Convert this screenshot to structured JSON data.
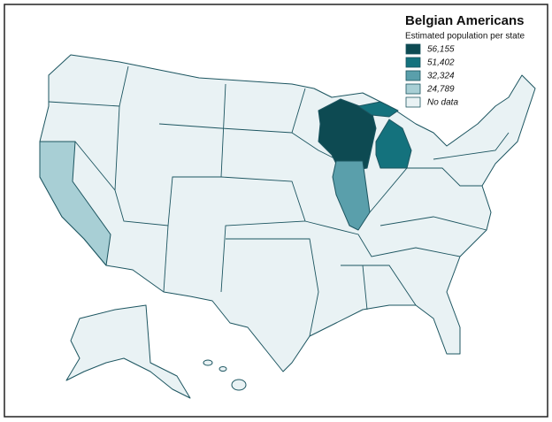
{
  "legend": {
    "title": "Belgian Americans",
    "subtitle": "Estimated population per state",
    "items": [
      {
        "label": "56,155",
        "color": "#0d4a52"
      },
      {
        "label": "51,402",
        "color": "#14727d"
      },
      {
        "label": "32,324",
        "color": "#5a9fab"
      },
      {
        "label": "24,789",
        "color": "#a8cfd5"
      },
      {
        "label": "No data",
        "color": "#e9f2f4"
      }
    ]
  }
}
